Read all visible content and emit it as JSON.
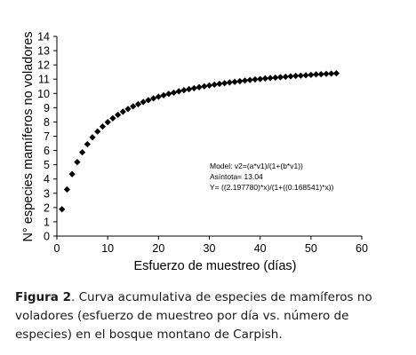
{
  "chart_data": {
    "type": "scatter",
    "xlabel": "Esfuerzo de muestreo (días)",
    "ylabel": "N° especies mamíferos no voladores",
    "xlim": [
      0,
      60
    ],
    "ylim": [
      0,
      14
    ],
    "x_ticks": [
      "0",
      "10",
      "20",
      "30",
      "40",
      "50",
      "60"
    ],
    "y_ticks": [
      "0",
      "1",
      "2",
      "3",
      "4",
      "5",
      "6",
      "7",
      "8",
      "9",
      "10",
      "11",
      "12",
      "13",
      "14"
    ],
    "grid": false,
    "marker": "diamond",
    "marker_color": "#000000",
    "x": [
      1,
      2,
      3,
      4,
      5,
      6,
      7,
      8,
      9,
      10,
      11,
      12,
      13,
      14,
      15,
      16,
      17,
      18,
      19,
      20,
      21,
      22,
      23,
      24,
      25,
      26,
      27,
      28,
      29,
      30,
      31,
      32,
      33,
      34,
      35,
      36,
      37,
      38,
      39,
      40,
      41,
      42,
      43,
      44,
      45,
      46,
      47,
      48,
      49,
      50,
      51,
      52,
      53,
      54,
      55
    ],
    "y": [
      1.88,
      3.27,
      4.34,
      5.19,
      5.87,
      6.44,
      6.92,
      7.33,
      7.68,
      7.99,
      8.26,
      8.5,
      8.72,
      8.91,
      9.09,
      9.25,
      9.4,
      9.53,
      9.65,
      9.77,
      9.87,
      9.97,
      10.06,
      10.15,
      10.23,
      10.3,
      10.37,
      10.44,
      10.5,
      10.56,
      10.62,
      10.67,
      10.72,
      10.77,
      10.81,
      10.86,
      10.9,
      10.94,
      10.98,
      11.01,
      11.05,
      11.08,
      11.11,
      11.14,
      11.17,
      11.2,
      11.23,
      11.25,
      11.28,
      11.3,
      11.33,
      11.35,
      11.37,
      11.39,
      11.41
    ],
    "annotation": [
      "Model: v2=(a*v1)/(1+(b*v1))",
      "Asíntota= 13.04",
      "Y= ((2.197780)*x)/(1+((0.168541)*x))"
    ]
  },
  "caption": {
    "label": "Figura 2",
    "text": ". Curva acumulativa de especies de mamíferos no voladores (esfuerzo de muestreo por día vs. número de especies) en el bosque montano de Carpish."
  }
}
